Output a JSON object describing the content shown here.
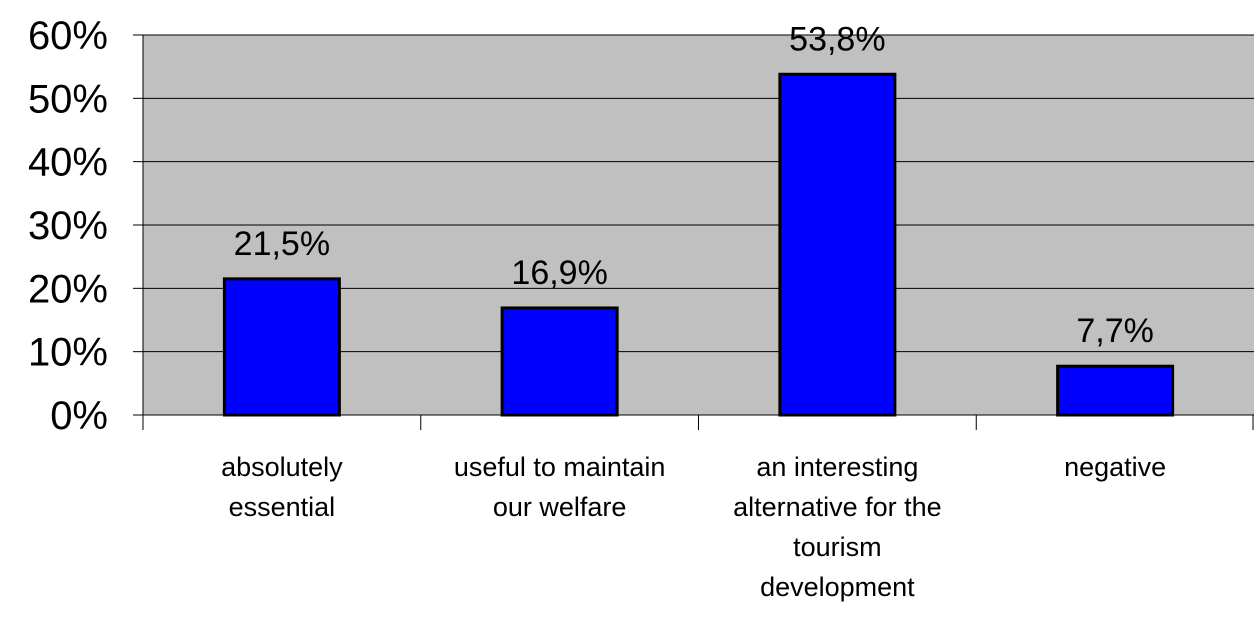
{
  "chart_data": {
    "type": "bar",
    "categories": [
      [
        "absolutely",
        "essential"
      ],
      [
        "useful to maintain",
        "our welfare"
      ],
      [
        "an interesting",
        "alternative for the",
        "tourism",
        "development"
      ],
      [
        "negative"
      ]
    ],
    "values": [
      21.5,
      16.9,
      53.8,
      7.7
    ],
    "data_labels": [
      "21,5%",
      "16,9%",
      "53,8%",
      "7,7%"
    ],
    "ylim": [
      0,
      60
    ],
    "y_ticks": [
      0,
      10,
      20,
      30,
      40,
      50,
      60
    ],
    "y_tick_labels": [
      "0%",
      "10%",
      "20%",
      "30%",
      "40%",
      "50%",
      "60%"
    ],
    "grid": true,
    "legend": "none",
    "colors": {
      "bar": "#0000ff",
      "bar_edge": "#000000",
      "plot_bg": "#c0c0c0",
      "gridline": "#000000"
    }
  }
}
